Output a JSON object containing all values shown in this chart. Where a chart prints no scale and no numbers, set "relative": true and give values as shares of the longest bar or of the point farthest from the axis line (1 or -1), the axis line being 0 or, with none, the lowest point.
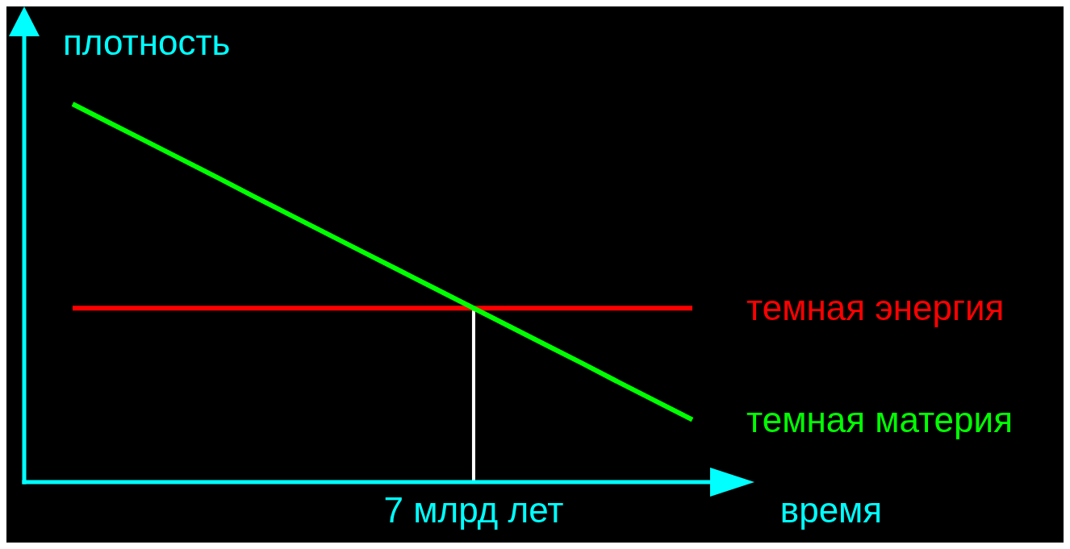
{
  "chart_data": {
    "type": "line",
    "relative": true,
    "xlabel": "время",
    "ylabel": "плотность",
    "categories": [
      null,
      null,
      null,
      null,
      null,
      null,
      null,
      null,
      null,
      null,
      null,
      null,
      null,
      null,
      null,
      null,
      null,
      null
    ],
    "series": [
      {
        "name": "темная энергия",
        "color": "#ff0000",
        "values": [
          0.46,
          0.46,
          0.46,
          0.46,
          0.46,
          0.46,
          0.46,
          0.46,
          0.46,
          0.46,
          0.46,
          0.46,
          0.46,
          0.46,
          0.46,
          0.46,
          0.46,
          0.46
        ]
      },
      {
        "name": "темная материя",
        "color": "#00ff00",
        "values": [
          1,
          0.951,
          0.902,
          0.853,
          0.804,
          0.754,
          0.705,
          0.656,
          0.607,
          0.558,
          0.509,
          0.46,
          0.411,
          0.362,
          0.313,
          0.263,
          0.214,
          0.165
        ]
      }
    ],
    "ref_lines": [
      {
        "axis": "x",
        "label": "7 млрд лет",
        "color": "#ffffff"
      }
    ],
    "legend": false,
    "grid": false,
    "marker": "none",
    "line_style": "solid"
  }
}
